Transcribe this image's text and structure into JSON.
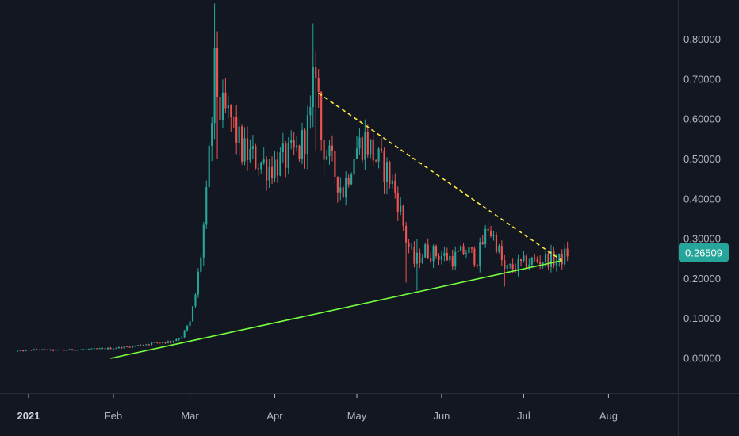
{
  "colors": {
    "background": "#131722",
    "up": "#26a69a",
    "down": "#ef5350",
    "support_line": "#76ff3f",
    "resistance_line": "#ffeb3b",
    "axis_text": "#b2b5be",
    "price_tag": "#26a69a"
  },
  "chart_data": {
    "type": "candlestick",
    "title": "",
    "xlabel": "",
    "ylabel": "",
    "x_range": [
      "2020-12-28",
      "2021-08-31"
    ],
    "y_range": [
      -0.09,
      0.9
    ],
    "y_ticks": [
      {
        "value": 0.8,
        "label": "0.80000"
      },
      {
        "value": 0.7,
        "label": "0.70000"
      },
      {
        "value": 0.6,
        "label": "0.60000"
      },
      {
        "value": 0.5,
        "label": "0.50000"
      },
      {
        "value": 0.4,
        "label": "0.40000"
      },
      {
        "value": 0.3,
        "label": "0.30000"
      },
      {
        "value": 0.2,
        "label": "0.20000"
      },
      {
        "value": 0.1,
        "label": "0.10000"
      },
      {
        "value": 0.0,
        "label": "0.00000"
      }
    ],
    "x_ticks": [
      {
        "date": "2021-01-01",
        "label": "2021",
        "bold": true
      },
      {
        "date": "2021-02-01",
        "label": "Feb"
      },
      {
        "date": "2021-03-01",
        "label": "Mar"
      },
      {
        "date": "2021-04-01",
        "label": "Apr"
      },
      {
        "date": "2021-05-01",
        "label": "May"
      },
      {
        "date": "2021-06-01",
        "label": "Jun"
      },
      {
        "date": "2021-07-01",
        "label": "Jul"
      },
      {
        "date": "2021-08-01",
        "label": "Aug"
      }
    ],
    "current_price": {
      "value": 0.26509,
      "label": "0.26509"
    },
    "grid": false,
    "legend": "none",
    "trendlines": [
      {
        "name": "",
        "style": "solid",
        "color": "#76ff3f",
        "from": {
          "date": "2021-01-31",
          "value": 0.0
        },
        "to": {
          "date": "2021-07-15",
          "value": 0.245
        }
      },
      {
        "name": "",
        "style": "dashed",
        "color": "#ffeb3b",
        "from": {
          "date": "2021-04-17",
          "value": 0.665
        },
        "to": {
          "date": "2021-07-15",
          "value": 0.245
        }
      }
    ],
    "keypoints": [
      [
        "2020-12-28",
        0.018
      ],
      [
        "2021-01-04",
        0.022
      ],
      [
        "2021-01-10",
        0.02
      ],
      [
        "2021-01-20",
        0.022
      ],
      [
        "2021-01-31",
        0.025
      ],
      [
        "2021-02-08",
        0.03
      ],
      [
        "2021-02-15",
        0.038
      ],
      [
        "2021-02-22",
        0.042
      ],
      [
        "2021-02-26",
        0.055
      ],
      [
        "2021-03-01",
        0.09
      ],
      [
        "2021-03-03",
        0.16
      ],
      [
        "2021-03-05",
        0.26
      ],
      [
        "2021-03-07",
        0.4
      ],
      [
        "2021-03-09",
        0.6
      ],
      [
        "2021-03-10",
        0.72
      ],
      [
        "2021-03-12",
        0.62
      ],
      [
        "2021-03-16",
        0.6
      ],
      [
        "2021-03-20",
        0.52
      ],
      [
        "2021-03-25",
        0.5
      ],
      [
        "2021-03-30",
        0.48
      ],
      [
        "2021-04-05",
        0.5
      ],
      [
        "2021-04-10",
        0.52
      ],
      [
        "2021-04-14",
        0.6
      ],
      [
        "2021-04-16",
        0.75
      ],
      [
        "2021-04-18",
        0.55
      ],
      [
        "2021-04-22",
        0.48
      ],
      [
        "2021-04-26",
        0.42
      ],
      [
        "2021-04-30",
        0.52
      ],
      [
        "2021-05-04",
        0.55
      ],
      [
        "2021-05-08",
        0.5
      ],
      [
        "2021-05-12",
        0.47
      ],
      [
        "2021-05-16",
        0.4
      ],
      [
        "2021-05-19",
        0.3
      ],
      [
        "2021-05-22",
        0.24
      ],
      [
        "2021-05-26",
        0.27
      ],
      [
        "2021-05-31",
        0.26
      ],
      [
        "2021-06-05",
        0.25
      ],
      [
        "2021-06-10",
        0.27
      ],
      [
        "2021-06-14",
        0.25
      ],
      [
        "2021-06-18",
        0.33
      ],
      [
        "2021-06-21",
        0.29
      ],
      [
        "2021-06-24",
        0.22
      ],
      [
        "2021-06-28",
        0.23
      ],
      [
        "2021-07-02",
        0.24
      ],
      [
        "2021-07-06",
        0.245
      ],
      [
        "2021-07-10",
        0.25
      ],
      [
        "2021-07-14",
        0.245
      ],
      [
        "2021-07-17",
        0.265
      ]
    ],
    "spikes": [
      {
        "date": "2021-03-10",
        "high": 0.89,
        "low": 0.55
      },
      {
        "date": "2021-03-11",
        "high": 0.82,
        "low": 0.5
      },
      {
        "date": "2021-04-15",
        "high": 0.84,
        "low": 0.58
      },
      {
        "date": "2021-04-16",
        "high": 0.77,
        "low": 0.52
      },
      {
        "date": "2021-05-19",
        "high": 0.33,
        "low": 0.19
      },
      {
        "date": "2021-05-23",
        "high": 0.3,
        "low": 0.17
      },
      {
        "date": "2021-06-24",
        "high": 0.25,
        "low": 0.18
      }
    ]
  }
}
